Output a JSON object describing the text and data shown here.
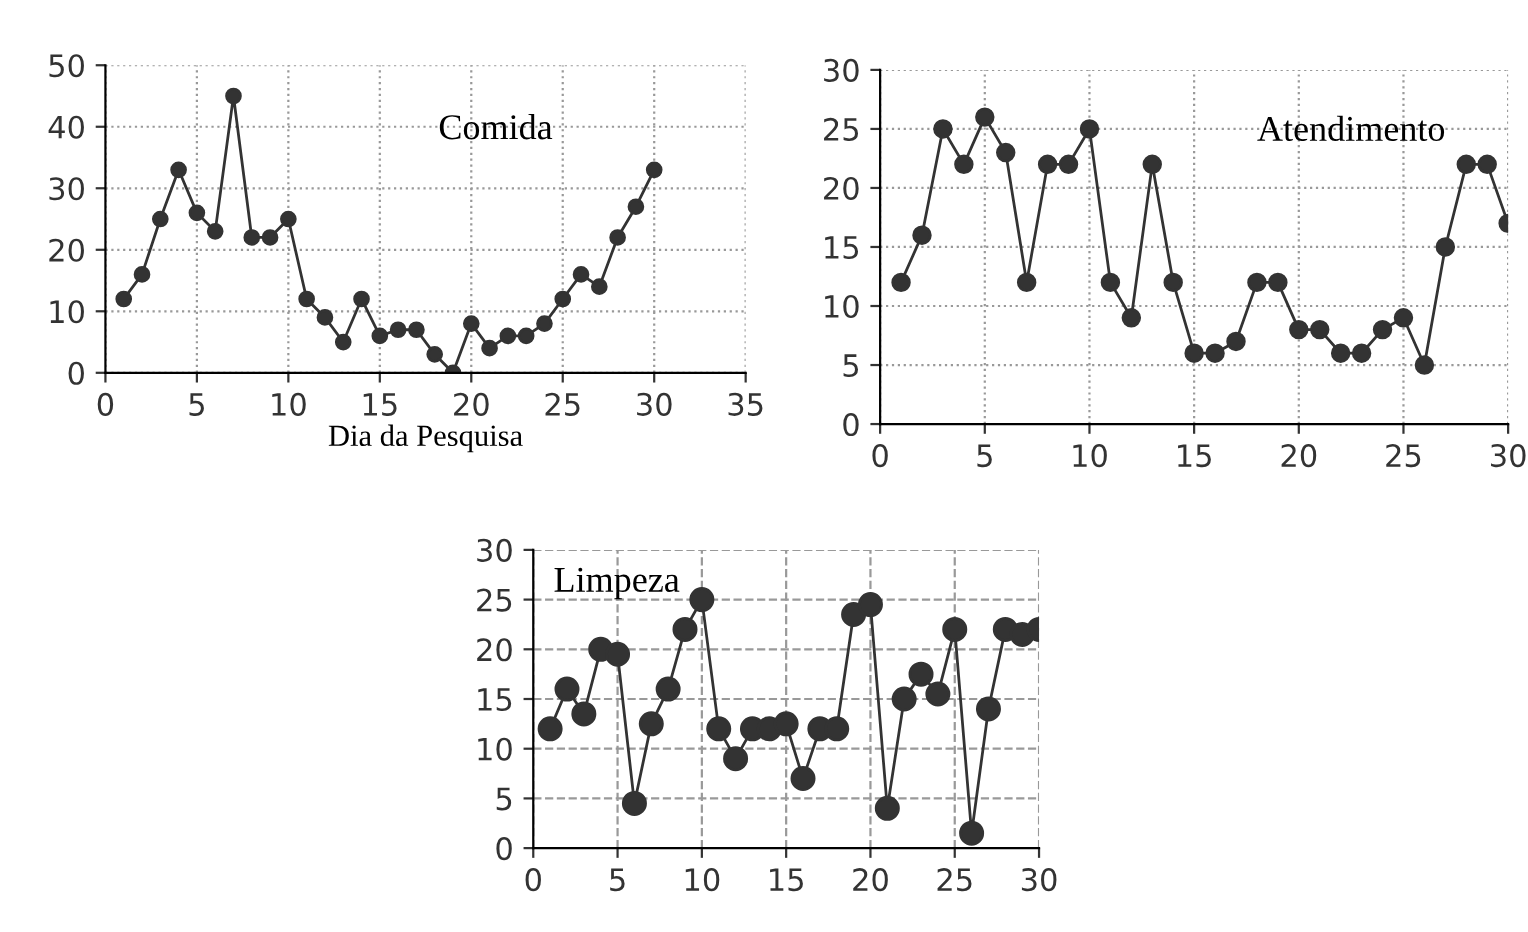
{
  "chart_data": [
    {
      "type": "line",
      "xlabel": "Dia da Pesquisa",
      "annotations": [
        "Comida"
      ],
      "x": [
        1,
        2,
        3,
        4,
        5,
        6,
        7,
        8,
        9,
        10,
        11,
        12,
        13,
        14,
        15,
        16,
        17,
        18,
        19,
        20,
        21,
        22,
        23,
        24,
        25,
        26,
        27,
        28,
        29,
        30
      ],
      "series": [
        {
          "color": "#333333",
          "values": [
            12,
            16,
            25,
            33,
            26,
            23,
            45,
            22,
            22,
            25,
            12,
            9,
            5,
            12,
            6,
            7,
            7,
            3,
            0,
            8,
            4,
            6,
            6,
            8,
            12,
            16,
            14,
            22,
            27,
            33
          ]
        }
      ],
      "xlim": [
        0,
        35
      ],
      "xticks": [
        0,
        5,
        10,
        15,
        20,
        25,
        30,
        35
      ],
      "ylim": [
        0,
        50
      ],
      "yticks": [
        0,
        10,
        20,
        30,
        40,
        50
      ],
      "grid": true,
      "marker": "circle",
      "line_style": "solid"
    },
    {
      "type": "line",
      "annotations": [
        "Atendimento"
      ],
      "x": [
        1,
        2,
        3,
        4,
        5,
        6,
        7,
        8,
        9,
        10,
        11,
        12,
        13,
        14,
        15,
        16,
        17,
        18,
        19,
        20,
        21,
        22,
        23,
        24,
        25,
        26,
        27,
        28,
        29,
        30
      ],
      "series": [
        {
          "color": "#333333",
          "values": [
            12,
            16,
            25,
            22,
            26,
            23,
            12,
            22,
            22,
            25,
            12,
            9,
            22,
            12,
            6,
            6,
            7,
            12,
            12,
            8,
            8,
            6,
            6,
            8,
            9,
            5,
            15,
            22,
            22,
            17
          ]
        }
      ],
      "xlim": [
        0,
        30
      ],
      "xticks": [
        0,
        5,
        10,
        15,
        20,
        25,
        30
      ],
      "ylim": [
        0,
        30
      ],
      "yticks": [
        0,
        5,
        10,
        15,
        20,
        25,
        30
      ],
      "grid": true,
      "marker": "circle",
      "line_style": "solid"
    },
    {
      "type": "line",
      "annotations": [
        "Limpeza"
      ],
      "x": [
        1,
        2,
        3,
        4,
        5,
        6,
        7,
        8,
        9,
        10,
        11,
        12,
        13,
        14,
        15,
        16,
        17,
        18,
        19,
        20,
        21,
        22,
        23,
        24,
        25,
        26,
        27,
        28,
        29,
        30
      ],
      "series": [
        {
          "color": "#333333",
          "values": [
            12,
            16,
            13.5,
            20,
            19.5,
            4.5,
            12.5,
            16,
            22,
            25,
            12,
            9,
            12,
            12,
            12.5,
            7,
            12,
            12,
            23.5,
            24.5,
            4,
            15,
            17.5,
            15.5,
            22,
            1.5,
            14,
            22,
            21.5,
            22
          ]
        }
      ],
      "xlim": [
        0,
        30
      ],
      "xticks": [
        0,
        5,
        10,
        15,
        20,
        25,
        30
      ],
      "ylim": [
        0,
        30
      ],
      "yticks": [
        0,
        5,
        10,
        15,
        20,
        25,
        30
      ],
      "grid": true,
      "marker": "circle",
      "line_style": "solid"
    }
  ]
}
